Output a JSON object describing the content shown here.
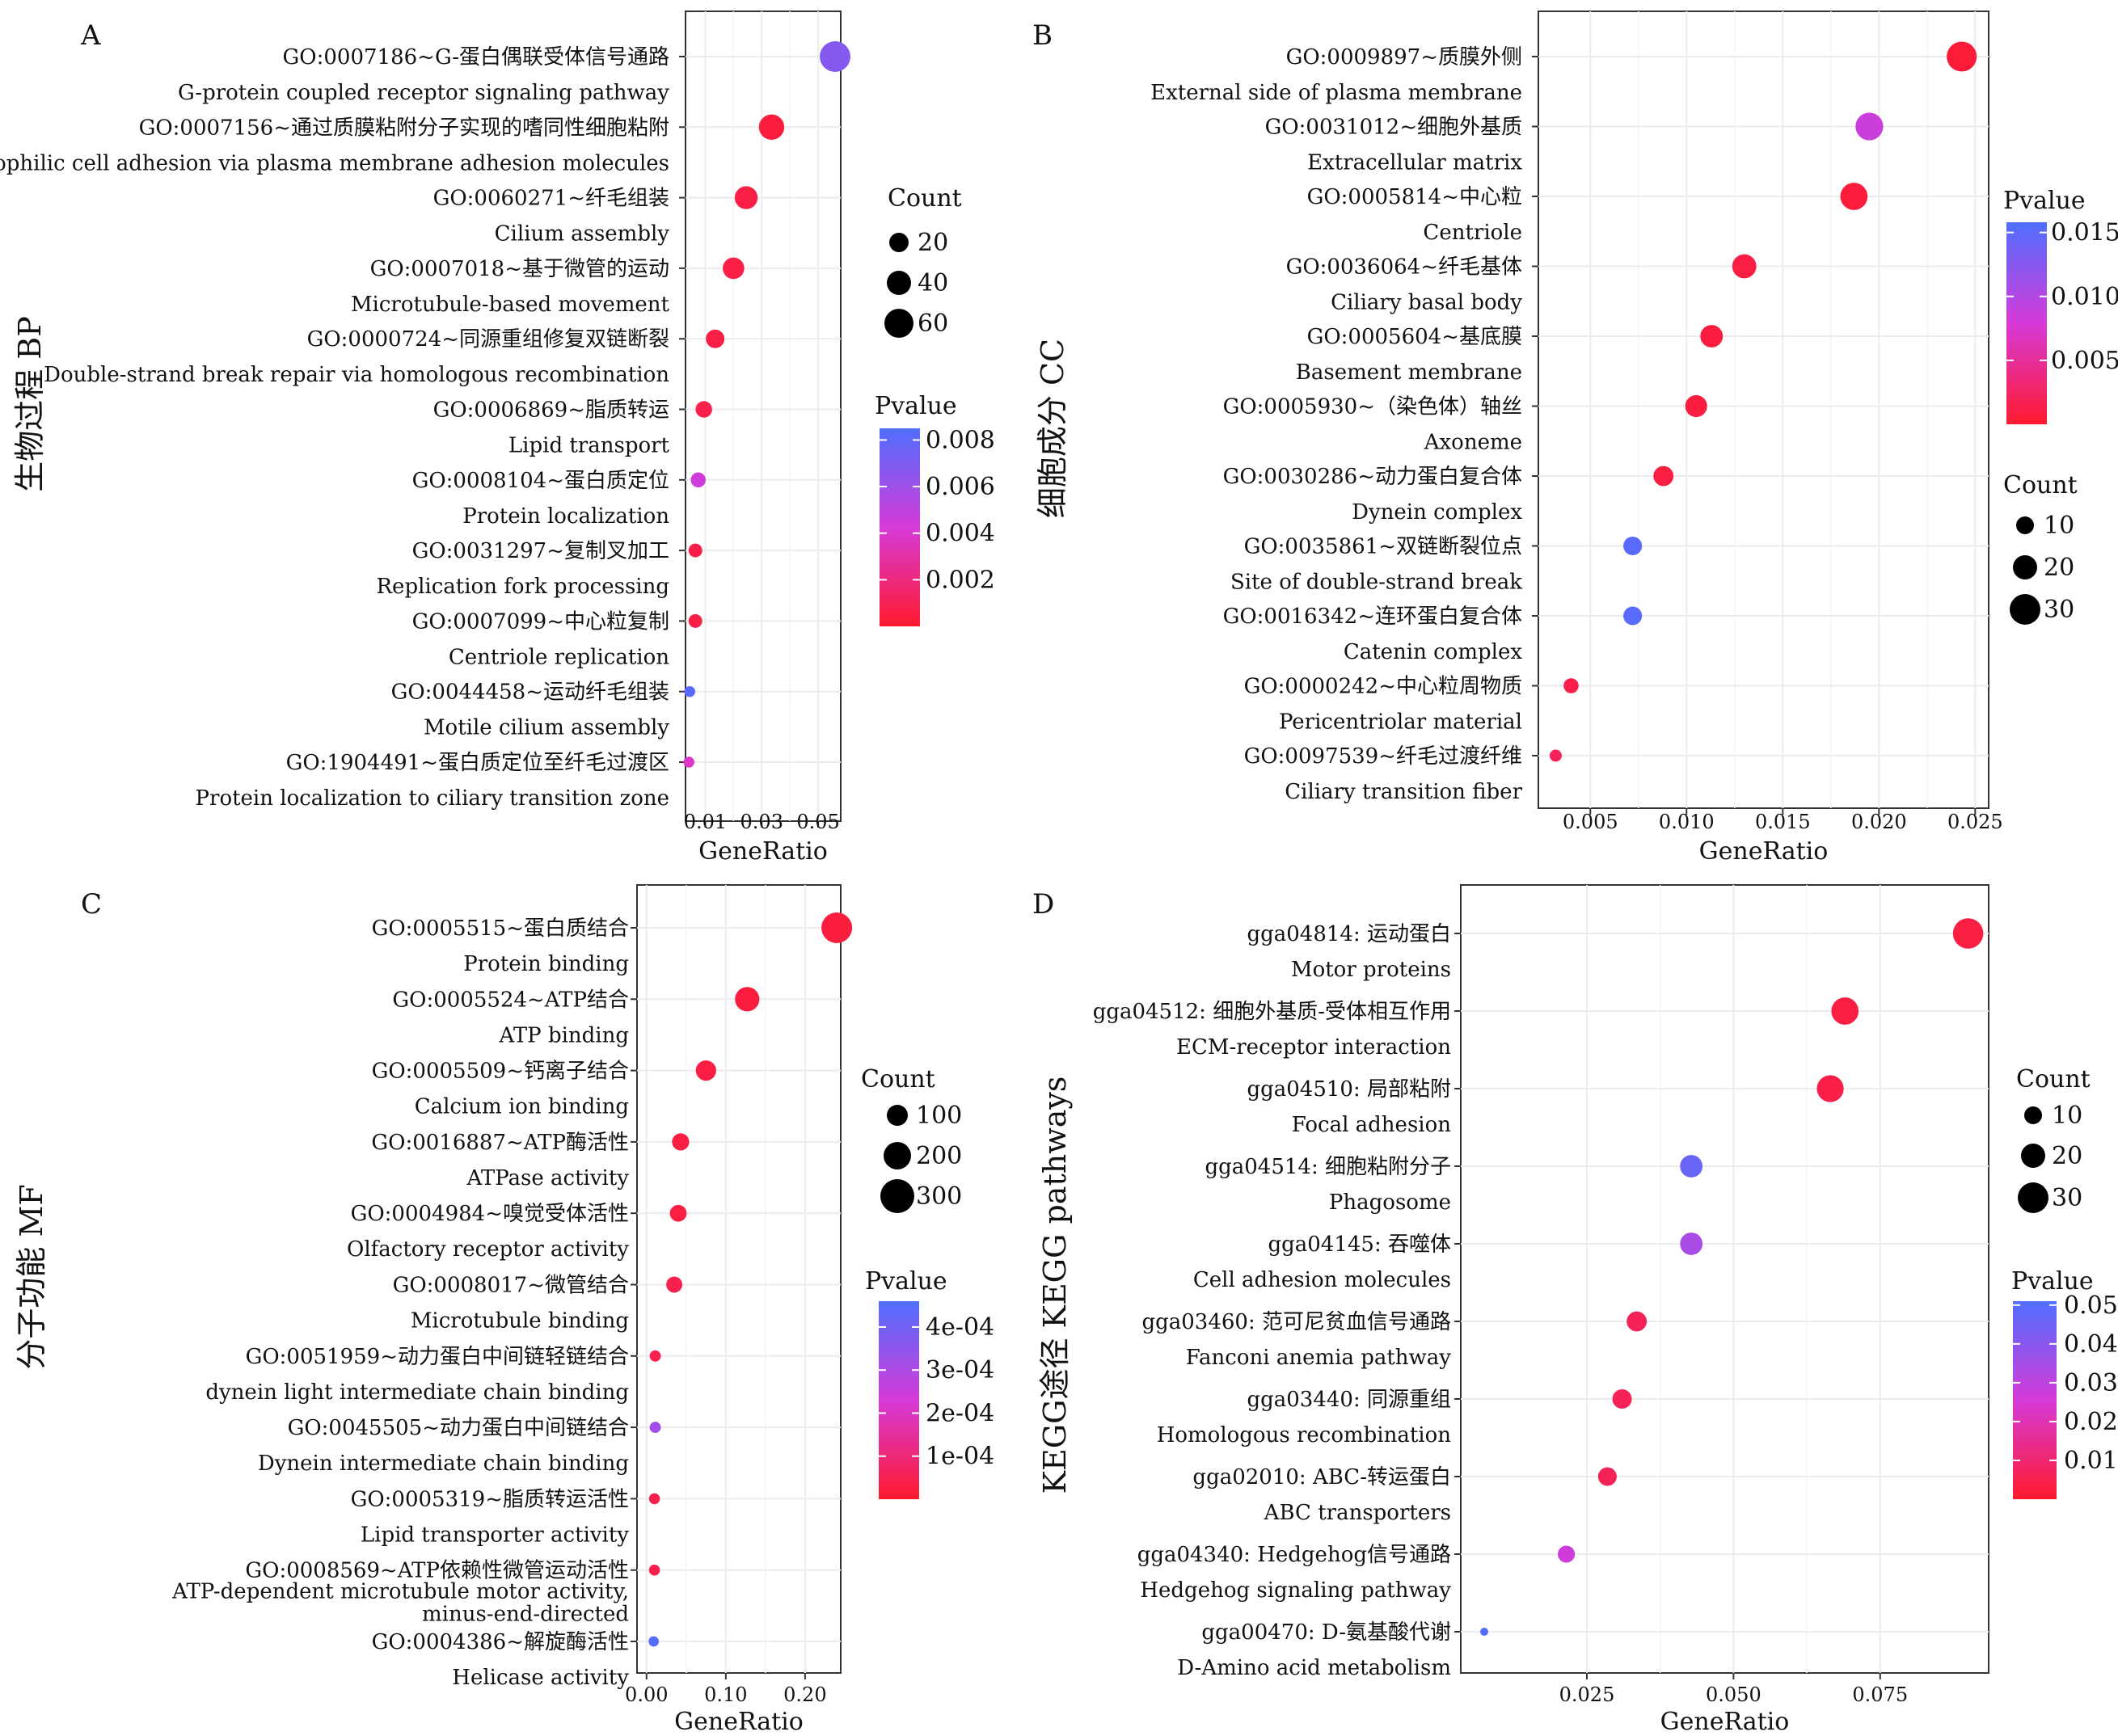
{
  "panels": [
    {
      "letter": "A",
      "side_title": "生物过程 BP",
      "xlabel": "GeneRatio",
      "tick_labels": [
        "0.01",
        "0.03",
        "0.05"
      ],
      "count_legend": {
        "title": "Count",
        "labels": [
          "20",
          "40",
          "60"
        ],
        "values": [
          20,
          40,
          60
        ]
      },
      "pvalue_legend": {
        "title": "Pvalue",
        "labels": [
          "0.008",
          "0.006",
          "0.004",
          "0.002"
        ],
        "values": [
          0.008,
          0.006,
          0.004,
          0.002
        ]
      }
    },
    {
      "letter": "B",
      "side_title": "细胞成分 CC",
      "xlabel": "GeneRatio",
      "tick_labels": [
        "0.005",
        "0.010",
        "0.015",
        "0.020",
        "0.025"
      ],
      "count_legend": {
        "title": "Count",
        "labels": [
          "10",
          "20",
          "30"
        ],
        "values": [
          10,
          20,
          30
        ]
      },
      "pvalue_legend": {
        "title": "Pvalue",
        "labels": [
          "0.015",
          "0.010",
          "0.005"
        ],
        "values": [
          0.015,
          0.01,
          0.005
        ]
      }
    },
    {
      "letter": "C",
      "side_title": "分子功能 MF",
      "xlabel": "GeneRatio",
      "tick_labels": [
        "0.00",
        "0.10",
        "0.20"
      ],
      "count_legend": {
        "title": "Count",
        "labels": [
          "100",
          "200",
          "300"
        ],
        "values": [
          100,
          200,
          300
        ]
      },
      "pvalue_legend": {
        "title": "Pvalue",
        "labels": [
          "4e-04",
          "3e-04",
          "2e-04",
          "1e-04"
        ],
        "values": [
          0.0004,
          0.0003,
          0.0002,
          0.0001
        ]
      }
    },
    {
      "letter": "D",
      "side_title": "KEGG途径 KEGG pathways",
      "xlabel": "GeneRatio",
      "tick_labels": [
        "0.025",
        "0.050",
        "0.075"
      ],
      "count_legend": {
        "title": "Count",
        "labels": [
          "10",
          "20",
          "30"
        ],
        "values": [
          10,
          20,
          30
        ]
      },
      "pvalue_legend": {
        "title": "Pvalue",
        "labels": [
          "0.05",
          "0.04",
          "0.03",
          "0.02",
          "0.01"
        ],
        "values": [
          0.05,
          0.04,
          0.03,
          0.02,
          0.01
        ]
      }
    }
  ],
  "chart_data": [
    {
      "type": "scatter",
      "panel": "A",
      "title": "",
      "ylabel": "生物过程 BP",
      "xlabel": "GeneRatio",
      "xlim": [
        0.003,
        0.058
      ],
      "xticks": [
        0.01,
        0.03,
        0.05
      ],
      "pvalue_range": [
        0.0,
        0.0085
      ],
      "count_range": [
        5,
        70
      ],
      "colors": {
        "low": "#ff1a2e",
        "mid": "#d63ad8",
        "high": "#4f6fff"
      },
      "terms": [
        {
          "id": "GO:0007186~G-蛋白偶联受体信号通路",
          "name": "G-protein coupled receptor signaling pathway",
          "gene_ratio": 0.056,
          "count": 70,
          "pvalue": 0.0068
        },
        {
          "id": "GO:0007156~通过质膜粘附分子实现的嗜同性细胞粘附",
          "name": "Homophilic cell adhesion via plasma membrane adhesion molecules",
          "gene_ratio": 0.0335,
          "count": 43,
          "pvalue": 0.0004
        },
        {
          "id": "GO:0060271~纤毛组装",
          "name": "Cilium assembly",
          "gene_ratio": 0.0245,
          "count": 33,
          "pvalue": 0.0006
        },
        {
          "id": "GO:0007018~基于微管的运动",
          "name": "Microtubule-based movement",
          "gene_ratio": 0.02,
          "count": 28,
          "pvalue": 0.0006
        },
        {
          "id": "GO:0000724~同源重组修复双链断裂",
          "name": "Double-strand break repair via homologous recombination",
          "gene_ratio": 0.0135,
          "count": 19,
          "pvalue": 0.0006
        },
        {
          "id": "GO:0006869~脂质转运",
          "name": "Lipid transport",
          "gene_ratio": 0.0095,
          "count": 14,
          "pvalue": 0.0007
        },
        {
          "id": "GO:0008104~蛋白质定位",
          "name": "Protein localization",
          "gene_ratio": 0.0075,
          "count": 11,
          "pvalue": 0.0045
        },
        {
          "id": "GO:0031297~复制叉加工",
          "name": "Replication fork processing",
          "gene_ratio": 0.0065,
          "count": 9,
          "pvalue": 0.0006
        },
        {
          "id": "GO:0007099~中心粒复制",
          "name": "Centriole replication",
          "gene_ratio": 0.0065,
          "count": 9,
          "pvalue": 0.0006
        },
        {
          "id": "GO:0044458~运动纤毛组装",
          "name": "Motile cilium assembly",
          "gene_ratio": 0.0045,
          "count": 6,
          "pvalue": 0.0082
        },
        {
          "id": "GO:1904491~蛋白质定位至纤毛过渡区",
          "name": "Protein localization to ciliary transition zone",
          "gene_ratio": 0.0042,
          "count": 6,
          "pvalue": 0.0038
        }
      ]
    },
    {
      "type": "scatter",
      "panel": "B",
      "title": "",
      "ylabel": "细胞成分 CC",
      "xlabel": "GeneRatio",
      "xlim": [
        0.0023,
        0.0257
      ],
      "xticks": [
        0.005,
        0.01,
        0.015,
        0.02,
        0.025
      ],
      "pvalue_range": [
        0.0,
        0.0158
      ],
      "count_range": [
        3,
        35
      ],
      "colors": {
        "low": "#ff1a2e",
        "mid": "#d63ad8",
        "high": "#4f6fff"
      },
      "terms": [
        {
          "id": "GO:0009897~质膜外侧",
          "name": "External side of plasma membrane",
          "gene_ratio": 0.0243,
          "count": 33,
          "pvalue": 0.0005
        },
        {
          "id": "GO:0031012~细胞外基质",
          "name": "Extracellular matrix",
          "gene_ratio": 0.0195,
          "count": 27,
          "pvalue": 0.0085
        },
        {
          "id": "GO:0005814~中心粒",
          "name": "Centriole",
          "gene_ratio": 0.0187,
          "count": 26,
          "pvalue": 0.0006
        },
        {
          "id": "GO:0036064~纤毛基体",
          "name": "Ciliary basal body",
          "gene_ratio": 0.013,
          "count": 19,
          "pvalue": 0.001
        },
        {
          "id": "GO:0005604~基底膜",
          "name": "Basement membrane",
          "gene_ratio": 0.0113,
          "count": 16,
          "pvalue": 0.0008
        },
        {
          "id": "GO:0005930~（染色体）轴丝",
          "name": "Axoneme",
          "gene_ratio": 0.0105,
          "count": 15,
          "pvalue": 0.0007
        },
        {
          "id": "GO:0030286~动力蛋白复合体",
          "name": "Dynein complex",
          "gene_ratio": 0.0088,
          "count": 12,
          "pvalue": 0.0009
        },
        {
          "id": "GO:0035861~双链断裂位点",
          "name": "Site of double-strand break",
          "gene_ratio": 0.0072,
          "count": 10,
          "pvalue": 0.0152
        },
        {
          "id": "GO:0016342~连环蛋白复合体",
          "name": "Catenin complex",
          "gene_ratio": 0.0072,
          "count": 10,
          "pvalue": 0.0152
        },
        {
          "id": "GO:0000242~中心粒周物质",
          "name": "Pericentriolar material",
          "gene_ratio": 0.004,
          "count": 6,
          "pvalue": 0.0012
        },
        {
          "id": "GO:0097539~纤毛过渡纤维",
          "name": "Ciliary transition fiber",
          "gene_ratio": 0.0032,
          "count": 4,
          "pvalue": 0.002
        }
      ]
    },
    {
      "type": "scatter",
      "panel": "C",
      "title": "",
      "ylabel": "分子功能 MF",
      "xlabel": "GeneRatio",
      "xlim": [
        -0.012,
        0.245
      ],
      "xticks": [
        0.0,
        0.1,
        0.2
      ],
      "pvalue_range": [
        0.0,
        0.00046
      ],
      "count_range": [
        8,
        320
      ],
      "colors": {
        "low": "#ff1a2e",
        "mid": "#d63ad8",
        "high": "#4f6fff"
      },
      "terms": [
        {
          "id": "GO:0005515~蛋白质结合",
          "name": "Protein binding",
          "gene_ratio": 0.24,
          "count": 320,
          "pvalue": 2e-05
        },
        {
          "id": "GO:0005524~ATP结合",
          "name": "ATP binding",
          "gene_ratio": 0.127,
          "count": 170,
          "pvalue": 2e-05
        },
        {
          "id": "GO:0005509~钙离子结合",
          "name": "Calcium ion binding",
          "gene_ratio": 0.075,
          "count": 100,
          "pvalue": 3e-05
        },
        {
          "id": "GO:0016887~ATP酶活性",
          "name": "ATPase activity",
          "gene_ratio": 0.043,
          "count": 58,
          "pvalue": 3e-05
        },
        {
          "id": "GO:0004984~嗅觉受体活性",
          "name": "Olfactory receptor activity",
          "gene_ratio": 0.04,
          "count": 54,
          "pvalue": 3e-05
        },
        {
          "id": "GO:0008017~微管结合",
          "name": "Microtubule binding",
          "gene_ratio": 0.035,
          "count": 47,
          "pvalue": 4e-05
        },
        {
          "id": "GO:0051959~动力蛋白中间链轻链结合",
          "name": "dynein light intermediate chain binding",
          "gene_ratio": 0.011,
          "count": 14,
          "pvalue": 4e-05
        },
        {
          "id": "GO:0045505~动力蛋白中间链结合",
          "name": "Dynein intermediate chain binding",
          "gene_ratio": 0.011,
          "count": 14,
          "pvalue": 0.00032
        },
        {
          "id": "GO:0005319~脂质转运活性",
          "name": "Lipid transporter activity",
          "gene_ratio": 0.01,
          "count": 13,
          "pvalue": 4e-05
        },
        {
          "id": "GO:0008569~ATP依赖性微管运动活性",
          "name": "ATP-dependent microtubule motor activity, minus-end-directed",
          "gene_ratio": 0.01,
          "count": 13,
          "pvalue": 4e-05
        },
        {
          "id": "GO:0004386~解旋酶活性",
          "name": "Helicase activity",
          "gene_ratio": 0.009,
          "count": 11,
          "pvalue": 0.00045
        }
      ]
    },
    {
      "type": "scatter",
      "panel": "D",
      "title": "",
      "ylabel": "KEGG途径 KEGG pathways",
      "xlabel": "GeneRatio",
      "xlim": [
        0.0035,
        0.0935
      ],
      "xticks": [
        0.025,
        0.05,
        0.075
      ],
      "pvalue_range": [
        0.0,
        0.051
      ],
      "count_range": [
        3,
        35
      ],
      "colors": {
        "low": "#ff1a2e",
        "mid": "#d63ad8",
        "high": "#4f6fff"
      },
      "terms": [
        {
          "id": "gga04814: 运动蛋白",
          "name": "Motor proteins",
          "gene_ratio": 0.09,
          "count": 34,
          "pvalue": 0.003
        },
        {
          "id": "gga04512: 细胞外基质-受体相互作用",
          "name": "ECM-receptor interaction",
          "gene_ratio": 0.069,
          "count": 26,
          "pvalue": 0.003
        },
        {
          "id": "gga04510: 局部粘附",
          "name": "Focal adhesion",
          "gene_ratio": 0.0665,
          "count": 25,
          "pvalue": 0.004
        },
        {
          "id": "gga04514: 细胞粘附分子",
          "name": "Phagosome",
          "gene_ratio": 0.0428,
          "count": 16,
          "pvalue": 0.046
        },
        {
          "id": "gga04145: 吞噬体",
          "name": "Cell adhesion molecules",
          "gene_ratio": 0.0428,
          "count": 16,
          "pvalue": 0.034
        },
        {
          "id": "gga03460: 范可尼贫血信号通路",
          "name": "Fanconi anemia pathway",
          "gene_ratio": 0.0335,
          "count": 12,
          "pvalue": 0.006
        },
        {
          "id": "gga03440: 同源重组",
          "name": "Homologous recombination",
          "gene_ratio": 0.031,
          "count": 11,
          "pvalue": 0.006
        },
        {
          "id": "gga02010: ABC-转运蛋白",
          "name": "ABC transporters",
          "gene_ratio": 0.0285,
          "count": 10,
          "pvalue": 0.006
        },
        {
          "id": "gga04340: Hedgehog信号通路",
          "name": "Hedgehog signaling pathway",
          "gene_ratio": 0.0215,
          "count": 8,
          "pvalue": 0.027
        },
        {
          "id": "gga00470: D-氨基酸代谢",
          "name": "D-Amino acid metabolism",
          "gene_ratio": 0.0075,
          "count": 3,
          "pvalue": 0.05
        }
      ]
    }
  ]
}
